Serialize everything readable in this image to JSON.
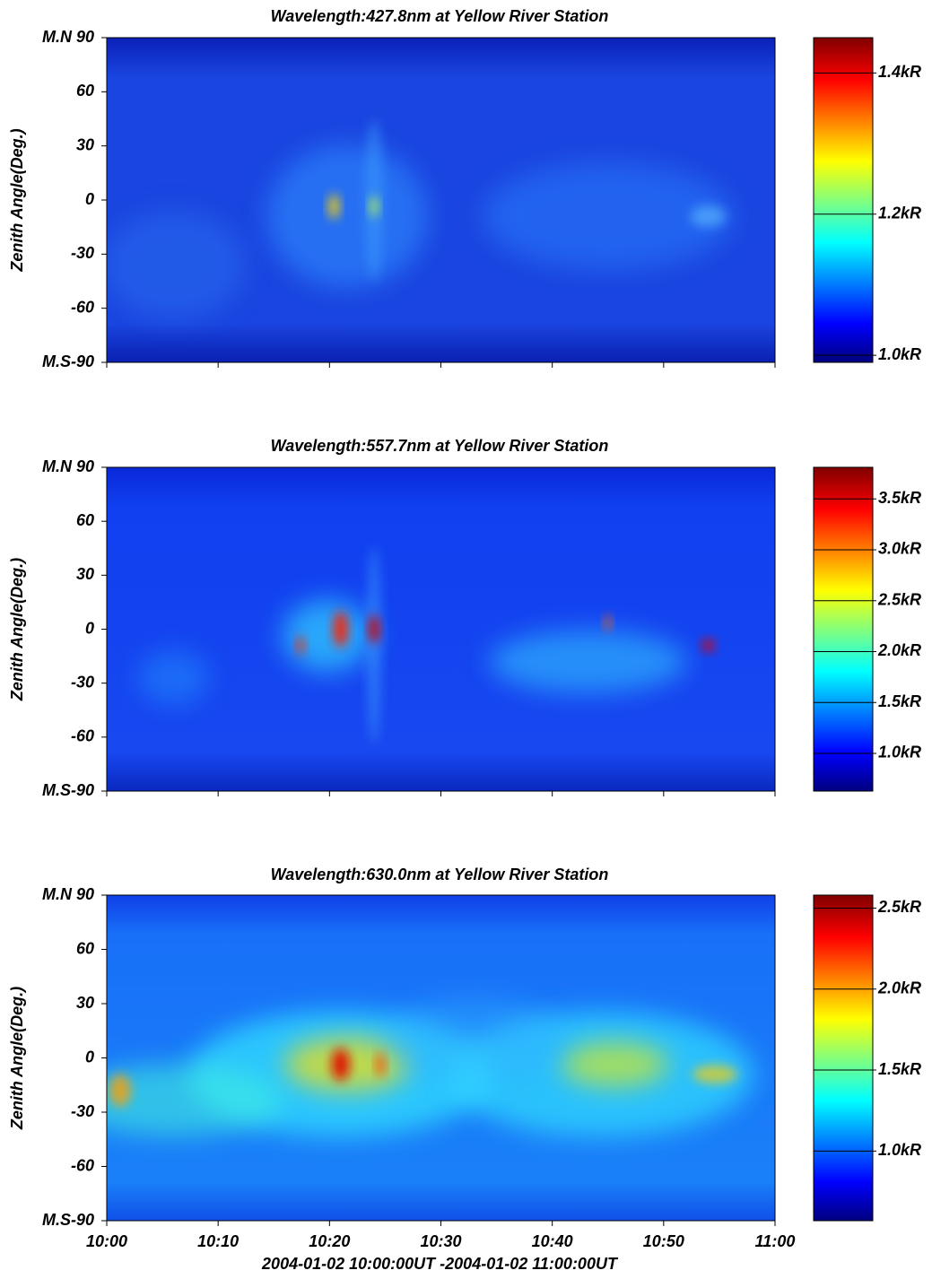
{
  "chart_data": [
    {
      "type": "heatmap",
      "title": "Wavelength:427.8nm at Yellow River Station",
      "ylabel": "Zenith Angle(Deg.)",
      "ylim": [
        -90,
        90
      ],
      "yticks": [
        {
          "value": 90,
          "label": "M.N 90"
        },
        60,
        30,
        0,
        -30,
        -60,
        {
          "value": -90,
          "label": "M.S-90"
        }
      ],
      "xlim": [
        "10:00",
        "11:00"
      ],
      "xticks": [
        "10:00",
        "10:10",
        "10:20",
        "10:30",
        "10:40",
        "10:50",
        "11:00"
      ],
      "colorbar": {
        "lim": [
          0.99,
          1.45
        ],
        "ticks": [
          {
            "value": 1.0,
            "label": "1.0kR"
          },
          {
            "value": 1.2,
            "label": "1.2kR"
          },
          {
            "value": 1.4,
            "label": "1.4kR"
          }
        ]
      }
    },
    {
      "type": "heatmap",
      "title": "Wavelength:557.7nm at Yellow River Station",
      "ylabel": "Zenith Angle(Deg.)",
      "ylim": [
        -90,
        90
      ],
      "yticks": [
        {
          "value": 90,
          "label": "M.N 90"
        },
        60,
        30,
        0,
        -30,
        -60,
        {
          "value": -90,
          "label": "M.S-90"
        }
      ],
      "xlim": [
        "10:00",
        "11:00"
      ],
      "xticks": [
        "10:00",
        "10:10",
        "10:20",
        "10:30",
        "10:40",
        "10:50",
        "11:00"
      ],
      "colorbar": {
        "lim": [
          0.63,
          3.81
        ],
        "ticks": [
          {
            "value": 1.0,
            "label": "1.0kR"
          },
          {
            "value": 1.5,
            "label": "1.5kR"
          },
          {
            "value": 2.0,
            "label": "2.0kR"
          },
          {
            "value": 2.5,
            "label": "2.5kR"
          },
          {
            "value": 3.0,
            "label": "3.0kR"
          },
          {
            "value": 3.5,
            "label": "3.5kR"
          }
        ]
      }
    },
    {
      "type": "heatmap",
      "title": "Wavelength:630.0nm at Yellow River Station",
      "ylabel": "Zenith Angle(Deg.)",
      "xlabel": "2004-01-02 10:00:00UT -2004-01-02 11:00:00UT",
      "ylim": [
        -90,
        90
      ],
      "yticks": [
        {
          "value": 90,
          "label": "M.N 90"
        },
        60,
        30,
        0,
        -30,
        -60,
        {
          "value": -90,
          "label": "M.S-90"
        }
      ],
      "xlim": [
        "10:00",
        "11:00"
      ],
      "xticks": [
        "10:00",
        "10:10",
        "10:20",
        "10:30",
        "10:40",
        "10:50",
        "11:00"
      ],
      "colorbar": {
        "lim": [
          0.57,
          2.58
        ],
        "ticks": [
          {
            "value": 1.0,
            "label": "1.0kR"
          },
          {
            "value": 1.5,
            "label": "1.5kR"
          },
          {
            "value": 2.0,
            "label": "2.0kR"
          },
          {
            "value": 2.5,
            "label": "2.5kR"
          }
        ]
      }
    }
  ]
}
